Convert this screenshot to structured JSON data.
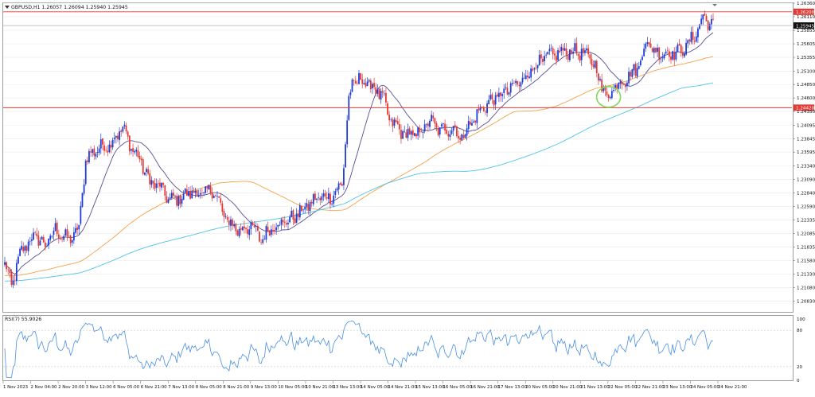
{
  "header": {
    "symbol_text": "GBPUSD,H1  1.26057 1.26094 1.25940 1.25945"
  },
  "rsi_panel": {
    "label": "RSI(7) 55.9026",
    "levels": [
      100,
      80,
      20,
      0
    ]
  },
  "colors": {
    "bull": "#1f3dd6",
    "bear": "#e53935",
    "ma_fast": "#5b4d96",
    "ma_mid": "#f5a04a",
    "ma_slow": "#4fc3e8",
    "hline": "#e53935",
    "rsi": "#4a90e2",
    "circle": "#7ed957"
  },
  "chart_data": {
    "type": "candlestick",
    "symbol": "GBPUSD",
    "timeframe": "H1",
    "ylim": [
      1.2063,
      1.2636
    ],
    "yticks": [
      "1.26360",
      "1.26110",
      "1.25855",
      "1.25605",
      "1.25355",
      "1.25100",
      "1.24850",
      "1.24600",
      "1.24350",
      "1.24095",
      "1.23845",
      "1.23595",
      "1.23340",
      "1.23090",
      "1.22840",
      "1.22590",
      "1.22335",
      "1.22085",
      "1.21835",
      "1.21580",
      "1.21330",
      "1.21080",
      "1.20830"
    ],
    "xticks": [
      "1 Nov 2023",
      "2 Nov 04:00",
      "2 Nov 20:00",
      "3 Nov 12:00",
      "6 Nov 05:00",
      "6 Nov 21:00",
      "7 Nov 13:00",
      "8 Nov 05:00",
      "8 Nov 21:00",
      "9 Nov 13:00",
      "10 Nov 05:00",
      "10 Nov 21:00",
      "13 Nov 13:00",
      "14 Nov 05:00",
      "14 Nov 21:00",
      "15 Nov 13:00",
      "16 Nov 05:00",
      "16 Nov 21:00",
      "17 Nov 13:00",
      "20 Nov 05:00",
      "20 Nov 21:00",
      "21 Nov 13:00",
      "22 Nov 05:00",
      "22 Nov 21:00",
      "23 Nov 13:00",
      "24 Nov 05:00",
      "24 Nov 21:00"
    ],
    "price_anchors": [
      [
        0,
        1.2152
      ],
      [
        4,
        1.2112
      ],
      [
        10,
        1.2178
      ],
      [
        18,
        1.2205
      ],
      [
        24,
        1.2186
      ],
      [
        30,
        1.2215
      ],
      [
        38,
        1.2196
      ],
      [
        44,
        1.2218
      ],
      [
        48,
        1.2346
      ],
      [
        54,
        1.2365
      ],
      [
        62,
        1.2374
      ],
      [
        70,
        1.2405
      ],
      [
        74,
        1.2375
      ],
      [
        80,
        1.2345
      ],
      [
        86,
        1.2305
      ],
      [
        92,
        1.2295
      ],
      [
        98,
        1.227
      ],
      [
        104,
        1.2275
      ],
      [
        110,
        1.2285
      ],
      [
        118,
        1.2282
      ],
      [
        124,
        1.229
      ],
      [
        130,
        1.224
      ],
      [
        138,
        1.2215
      ],
      [
        146,
        1.2222
      ],
      [
        152,
        1.2198
      ],
      [
        160,
        1.2225
      ],
      [
        168,
        1.2232
      ],
      [
        174,
        1.2245
      ],
      [
        180,
        1.2262
      ],
      [
        186,
        1.2275
      ],
      [
        194,
        1.2278
      ],
      [
        200,
        1.23
      ],
      [
        204,
        1.2456
      ],
      [
        206,
        1.2485
      ],
      [
        210,
        1.2495
      ],
      [
        218,
        1.2482
      ],
      [
        224,
        1.2462
      ],
      [
        228,
        1.242
      ],
      [
        236,
        1.2395
      ],
      [
        244,
        1.239
      ],
      [
        252,
        1.2418
      ],
      [
        258,
        1.24
      ],
      [
        266,
        1.2405
      ],
      [
        270,
        1.2385
      ],
      [
        276,
        1.2412
      ],
      [
        284,
        1.2445
      ],
      [
        292,
        1.2462
      ],
      [
        300,
        1.2478
      ],
      [
        306,
        1.249
      ],
      [
        314,
        1.252
      ],
      [
        322,
        1.2537
      ],
      [
        330,
        1.2545
      ],
      [
        338,
        1.2548
      ],
      [
        346,
        1.2537
      ],
      [
        350,
        1.252
      ],
      [
        354,
        1.248
      ],
      [
        358,
        1.2462
      ],
      [
        362,
        1.2485
      ],
      [
        368,
        1.2495
      ],
      [
        376,
        1.252
      ],
      [
        380,
        1.2565
      ],
      [
        386,
        1.2545
      ],
      [
        392,
        1.2543
      ],
      [
        400,
        1.2545
      ],
      [
        408,
        1.257
      ],
      [
        414,
        1.261
      ],
      [
        420,
        1.2595
      ]
    ],
    "hlines": [
      {
        "value": 1.262,
        "label": "1.26200"
      },
      {
        "value": 1.2442,
        "label": "1.24420"
      }
    ],
    "last_price": {
      "value": 1.25945,
      "label": "1.25945"
    },
    "moving_averages": [
      {
        "period": 20,
        "color_key": "ma_fast"
      },
      {
        "period": 100,
        "color_key": "ma_mid"
      },
      {
        "period": 200,
        "color_key": "ma_slow"
      }
    ],
    "rsi": {
      "period": 7,
      "current": 55.9026,
      "ylim": [
        0,
        100
      ],
      "levels": [
        80,
        20
      ]
    },
    "annotation": {
      "type": "circle",
      "at_index": 358,
      "at_price": 1.2462,
      "color_key": "circle"
    }
  }
}
